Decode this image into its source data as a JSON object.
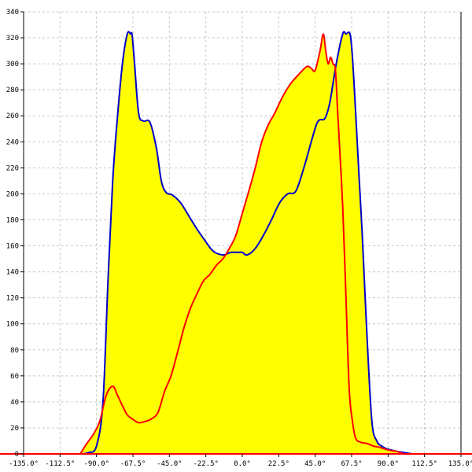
{
  "chart_data": {
    "type": "area",
    "title": "",
    "xlabel": "",
    "ylabel": "",
    "xlim": [
      -135,
      135
    ],
    "ylim": [
      0,
      340
    ],
    "grid": true,
    "x_ticks": [
      -135,
      -112.5,
      -90,
      -67.5,
      -45,
      -22.5,
      0,
      22.5,
      45,
      67.5,
      90,
      112.5,
      135
    ],
    "x_tick_labels": [
      "-135.0°",
      "-112.5°",
      "-90.0°",
      "-67.5°",
      "-45.0°",
      "-22.5°",
      "0.0°",
      "22.5°",
      "45.0°",
      "67.5°",
      "90.0°",
      "112.5°",
      "135.0°"
    ],
    "y_ticks": [
      0,
      20,
      40,
      60,
      80,
      100,
      120,
      140,
      160,
      180,
      200,
      220,
      240,
      260,
      280,
      300,
      320,
      340
    ],
    "y_tick_labels": [
      "0",
      "20",
      "40",
      "60",
      "80",
      "100",
      "120",
      "140",
      "160",
      "180",
      "200",
      "220",
      "240",
      "260",
      "280",
      "300",
      "320",
      "340"
    ],
    "series": [
      {
        "color": "#0000cc",
        "fill": "#ffff00",
        "x": [
          -100,
          -95,
          -90,
          -86,
          -83,
          -80,
          -77,
          -74,
          -71,
          -69,
          -68,
          -66.5,
          -64,
          -61,
          -57,
          -53,
          -50,
          -47,
          -43,
          -38,
          -33,
          -28,
          -23,
          -18,
          -12,
          -7,
          -2,
          0,
          3,
          8,
          13,
          18,
          23,
          28,
          33,
          38,
          43,
          46,
          48,
          51,
          54,
          58,
          62,
          64,
          66.5,
          68,
          70,
          72,
          74,
          77,
          80,
          83,
          86,
          89,
          92,
          95,
          100,
          105
        ],
        "y": [
          0,
          1,
          6,
          40,
          130,
          210,
          260,
          300,
          323,
          323,
          322,
          300,
          262,
          256,
          255,
          235,
          210,
          201,
          199,
          193,
          183,
          173,
          164,
          156,
          153,
          155,
          155,
          155,
          153,
          158,
          168,
          180,
          193,
          200,
          202,
          220,
          242,
          254,
          257,
          258,
          270,
          300,
          323,
          323,
          323,
          305,
          262,
          215,
          170,
          90,
          25,
          10,
          6,
          4,
          3,
          2,
          1,
          0
        ]
      },
      {
        "color": "#ff0000",
        "fill": "#ffff00",
        "x": [
          -100,
          -96,
          -92,
          -88,
          -84,
          -80,
          -77,
          -74,
          -71,
          -68,
          -64,
          -60,
          -56,
          -52,
          -48,
          -44,
          -40,
          -36,
          -32,
          -28,
          -24,
          -20,
          -16,
          -12,
          -8,
          -4,
          0,
          4,
          8,
          12,
          16,
          20,
          25,
          30,
          35,
          40,
          43,
          45,
          48,
          50,
          51.5,
          53,
          54.5,
          56,
          57.5,
          59,
          62,
          64,
          66,
          68,
          70,
          73,
          77,
          81,
          85,
          90,
          95,
          100,
          105
        ],
        "y": [
          0,
          8,
          15,
          25,
          45,
          52,
          45,
          37,
          30,
          27,
          24,
          25,
          27,
          32,
          48,
          60,
          78,
          97,
          112,
          123,
          133,
          138,
          145,
          150,
          158,
          168,
          185,
          202,
          220,
          240,
          253,
          262,
          275,
          285,
          292,
          298,
          296,
          295,
          310,
          323,
          310,
          300,
          305,
          300,
          295,
          260,
          190,
          120,
          50,
          25,
          12,
          9,
          8,
          6,
          5,
          3,
          2,
          0,
          0
        ]
      }
    ]
  }
}
